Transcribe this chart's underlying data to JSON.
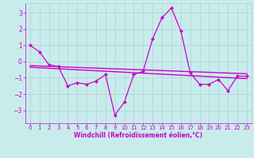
{
  "x": [
    0,
    1,
    2,
    3,
    4,
    5,
    6,
    7,
    8,
    9,
    10,
    11,
    12,
    13,
    14,
    15,
    16,
    17,
    18,
    19,
    20,
    21,
    22,
    23
  ],
  "line1": [
    1.0,
    0.6,
    -0.2,
    -0.3,
    -1.5,
    -1.3,
    -1.4,
    -1.2,
    -0.8,
    -3.3,
    -2.5,
    -0.8,
    -0.6,
    1.4,
    2.7,
    3.3,
    1.9,
    -0.7,
    -1.4,
    -1.4,
    -1.1,
    -1.8,
    -0.9,
    -0.9
  ],
  "trend1_x": [
    0,
    23
  ],
  "trend1_y": [
    -0.25,
    -0.75
  ],
  "trend2_x": [
    0,
    23
  ],
  "trend2_y": [
    -0.35,
    -1.05
  ],
  "bg_color": "#c8ecec",
  "grid_color": "#b0d0d0",
  "line_color": "#cc00cc",
  "xlabel": "Windchill (Refroidissement éolien,°C)",
  "ylim": [
    -3.8,
    3.6
  ],
  "xlim": [
    -0.5,
    23.5
  ],
  "yticks": [
    -3,
    -2,
    -1,
    0,
    1,
    2,
    3
  ],
  "xticks": [
    0,
    1,
    2,
    3,
    4,
    5,
    6,
    7,
    8,
    9,
    10,
    11,
    12,
    13,
    14,
    15,
    16,
    17,
    18,
    19,
    20,
    21,
    22,
    23
  ],
  "tick_fontsize": 5.0,
  "xlabel_fontsize": 5.5,
  "marker_size": 2.5,
  "line_width": 0.9
}
